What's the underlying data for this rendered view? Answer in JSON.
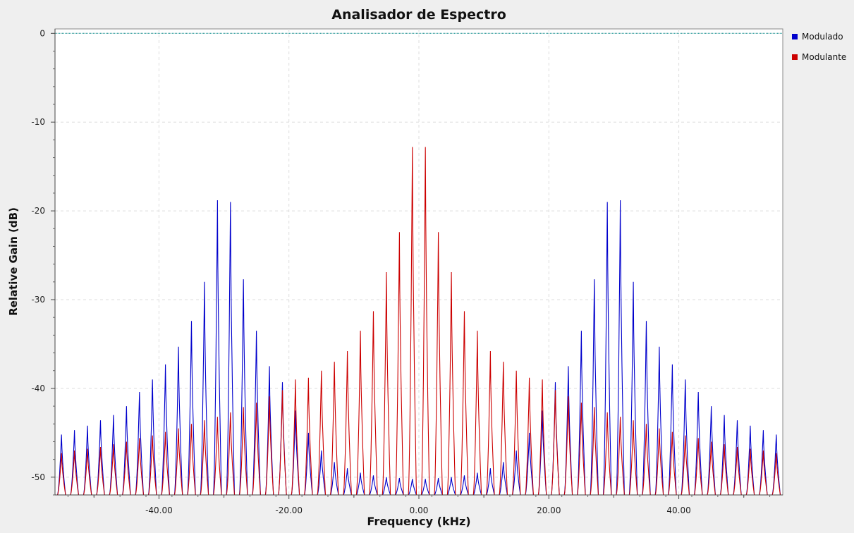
{
  "chart_data": {
    "type": "line",
    "title": "Analisador de Espectro",
    "xlabel": "Frequency (kHz)",
    "ylabel": "Relative Gain (dB)",
    "xlim": [
      -56,
      56
    ],
    "ylim": [
      -52,
      0.5
    ],
    "x_ticks": [
      {
        "value": -40,
        "label": "-40.00"
      },
      {
        "value": -20,
        "label": "-20.00"
      },
      {
        "value": 0,
        "label": "0.00"
      },
      {
        "value": 20,
        "label": "20.00"
      },
      {
        "value": 40,
        "label": "40.00"
      }
    ],
    "y_ticks": [
      {
        "value": 0,
        "label": "0"
      },
      {
        "value": -10,
        "label": "-10"
      },
      {
        "value": -20,
        "label": "-20"
      },
      {
        "value": -30,
        "label": "-30"
      },
      {
        "value": -40,
        "label": "-40"
      },
      {
        "value": -50,
        "label": "-50"
      }
    ],
    "grid": true,
    "legend_position": "right",
    "reference_line_y": 0,
    "series": [
      {
        "name": "Modulado",
        "color": "#0000cc",
        "peaks": [
          [
            -55,
            -45.2
          ],
          [
            -53,
            -44.7
          ],
          [
            -51,
            -44.2
          ],
          [
            -49,
            -43.6
          ],
          [
            -47,
            -43.0
          ],
          [
            -45,
            -42.0
          ],
          [
            -43,
            -40.4
          ],
          [
            -41,
            -39.0
          ],
          [
            -39,
            -37.3
          ],
          [
            -37,
            -35.3
          ],
          [
            -35,
            -32.4
          ],
          [
            -33,
            -28.0
          ],
          [
            -31,
            -18.8
          ],
          [
            -29,
            -19.0
          ],
          [
            -27,
            -27.7
          ],
          [
            -25,
            -33.5
          ],
          [
            -23,
            -37.5
          ],
          [
            -21,
            -39.3
          ],
          [
            -19,
            -42.5
          ],
          [
            -17,
            -45.0
          ],
          [
            -15,
            -47.0
          ],
          [
            -13,
            -48.3
          ],
          [
            -11,
            -49.0
          ],
          [
            -9,
            -49.5
          ],
          [
            -7,
            -49.8
          ],
          [
            -5,
            -50.0
          ],
          [
            -3,
            -50.1
          ],
          [
            -1,
            -50.2
          ],
          [
            1,
            -50.2
          ],
          [
            3,
            -50.1
          ],
          [
            5,
            -50.0
          ],
          [
            7,
            -49.8
          ],
          [
            9,
            -49.5
          ],
          [
            11,
            -49.0
          ],
          [
            13,
            -48.3
          ],
          [
            15,
            -47.0
          ],
          [
            17,
            -45.0
          ],
          [
            19,
            -42.5
          ],
          [
            21,
            -39.3
          ],
          [
            23,
            -37.5
          ],
          [
            25,
            -33.5
          ],
          [
            27,
            -27.7
          ],
          [
            29,
            -19.0
          ],
          [
            31,
            -18.8
          ],
          [
            33,
            -28.0
          ],
          [
            35,
            -32.4
          ],
          [
            37,
            -35.3
          ],
          [
            39,
            -37.3
          ],
          [
            41,
            -39.0
          ],
          [
            43,
            -40.4
          ],
          [
            45,
            -42.0
          ],
          [
            47,
            -43.0
          ],
          [
            49,
            -43.6
          ],
          [
            51,
            -44.2
          ],
          [
            53,
            -44.7
          ],
          [
            55,
            -45.2
          ]
        ]
      },
      {
        "name": "Modulante",
        "color": "#cc0000",
        "peaks": [
          [
            -55,
            -47.3
          ],
          [
            -53,
            -47.0
          ],
          [
            -51,
            -46.8
          ],
          [
            -49,
            -46.6
          ],
          [
            -47,
            -46.3
          ],
          [
            -45,
            -46.0
          ],
          [
            -43,
            -45.6
          ],
          [
            -41,
            -45.3
          ],
          [
            -39,
            -44.9
          ],
          [
            -37,
            -44.5
          ],
          [
            -35,
            -44.0
          ],
          [
            -33,
            -43.6
          ],
          [
            -31,
            -43.2
          ],
          [
            -29,
            -42.7
          ],
          [
            -27,
            -42.1
          ],
          [
            -25,
            -41.6
          ],
          [
            -23,
            -40.9
          ],
          [
            -21,
            -40.2
          ],
          [
            -19,
            -39.0
          ],
          [
            -17,
            -38.8
          ],
          [
            -15,
            -38.0
          ],
          [
            -13,
            -37.0
          ],
          [
            -11,
            -35.8
          ],
          [
            -9,
            -33.5
          ],
          [
            -7,
            -31.3
          ],
          [
            -5,
            -26.9
          ],
          [
            -3,
            -22.4
          ],
          [
            -1,
            -12.8
          ],
          [
            1,
            -12.8
          ],
          [
            3,
            -22.4
          ],
          [
            5,
            -26.9
          ],
          [
            7,
            -31.3
          ],
          [
            9,
            -33.5
          ],
          [
            11,
            -35.8
          ],
          [
            13,
            -37.0
          ],
          [
            15,
            -38.0
          ],
          [
            17,
            -38.8
          ],
          [
            19,
            -39.0
          ],
          [
            21,
            -40.2
          ],
          [
            23,
            -40.9
          ],
          [
            25,
            -41.6
          ],
          [
            27,
            -42.1
          ],
          [
            29,
            -42.7
          ],
          [
            31,
            -43.2
          ],
          [
            33,
            -43.6
          ],
          [
            35,
            -44.0
          ],
          [
            37,
            -44.5
          ],
          [
            39,
            -44.9
          ],
          [
            41,
            -45.3
          ],
          [
            43,
            -45.6
          ],
          [
            45,
            -46.0
          ],
          [
            47,
            -46.3
          ],
          [
            49,
            -46.6
          ],
          [
            51,
            -46.8
          ],
          [
            53,
            -47.0
          ],
          [
            55,
            -47.3
          ]
        ]
      }
    ]
  }
}
